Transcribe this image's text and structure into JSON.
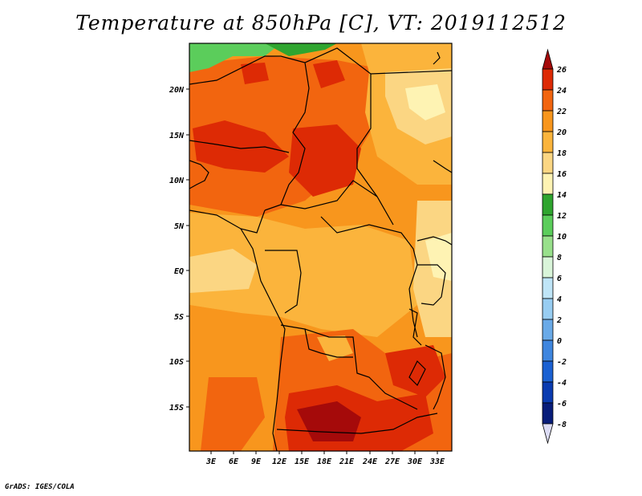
{
  "title": "Temperature at 850hPa [C], VT: 2019112512",
  "credit": "GrADS: IGES/COLA",
  "map": {
    "lat_labels": [
      "20N",
      "15N",
      "10N",
      "5N",
      "EQ",
      "5S",
      "10S",
      "15S"
    ],
    "lon_labels": [
      "3E",
      "6E",
      "9E",
      "12E",
      "15E",
      "18E",
      "21E",
      "24E",
      "27E",
      "30E",
      "33E"
    ]
  },
  "colorbar": {
    "labels": [
      "26",
      "24",
      "22",
      "20",
      "18",
      "16",
      "14",
      "12",
      "10",
      "8",
      "6",
      "4",
      "2",
      "0",
      "-2",
      "-4",
      "-6",
      "-8"
    ],
    "colors": [
      "#a50a0a",
      "#dd2a05",
      "#f2650f",
      "#f8961d",
      "#fbb43c",
      "#fbd683",
      "#fef3b3",
      "#2fa52f",
      "#5bcd5b",
      "#98e08b",
      "#d9f5d9",
      "#bfe5f7",
      "#98cdf2",
      "#6aaae8",
      "#3f86df",
      "#1b61d2",
      "#0a3bb0",
      "#081d7a",
      "#08104a",
      "#dcdcf5"
    ]
  }
}
